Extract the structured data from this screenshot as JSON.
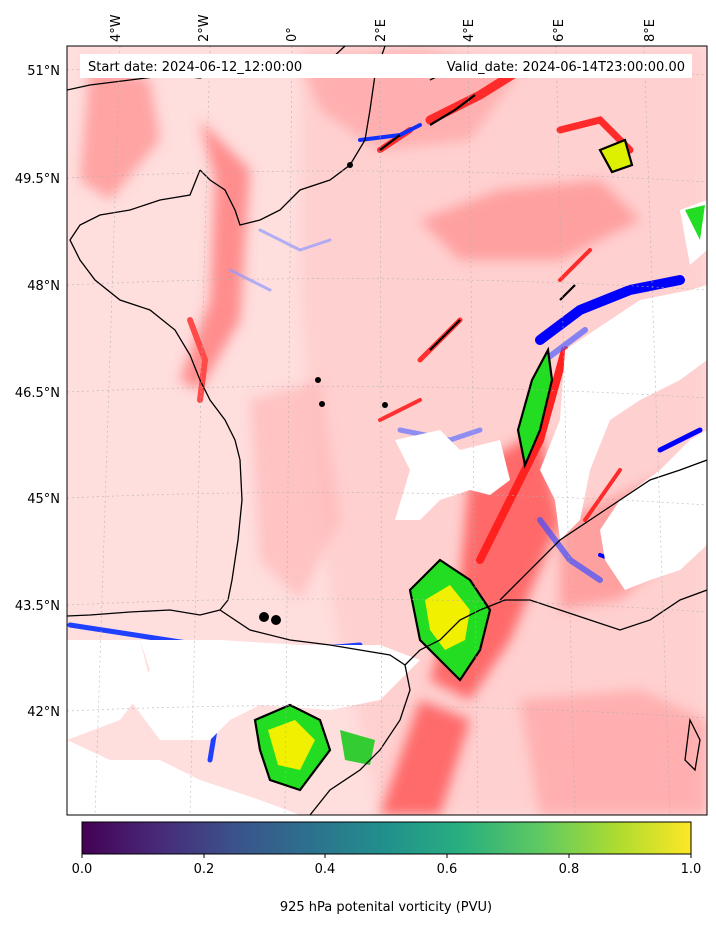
{
  "header": {
    "start_date": "Start date: 2024-06-12_12:00:00",
    "valid_date": "Valid_date: 2024-06-14T23:00:00.00"
  },
  "axes": {
    "top_ticks": [
      "4°W",
      "2°W",
      "0°",
      "2°E",
      "4°E",
      "6°E",
      "8°E"
    ],
    "left_ticks": [
      "51°N",
      "49.5°N",
      "48°N",
      "46.5°N",
      "45°N",
      "43.5°N",
      "42°N"
    ]
  },
  "colorbar": {
    "tick_labels": [
      "0.0",
      "0.2",
      "0.4",
      "0.6",
      "0.8",
      "1.0"
    ],
    "label": "925 hPa potenital vorticity (PVU)",
    "range": [
      0.0,
      1.0
    ],
    "colormap": "viridis"
  },
  "colors": {
    "pv_low_blue": "#0000ff",
    "pv_light_blue": "#c8c8ff",
    "pv_pale_red": "#ffd6d6",
    "pv_red": "#ff3030",
    "pv_high_green": "#22dd22",
    "pv_high_yellow": "#f0f000",
    "coastline": "#000000"
  }
}
